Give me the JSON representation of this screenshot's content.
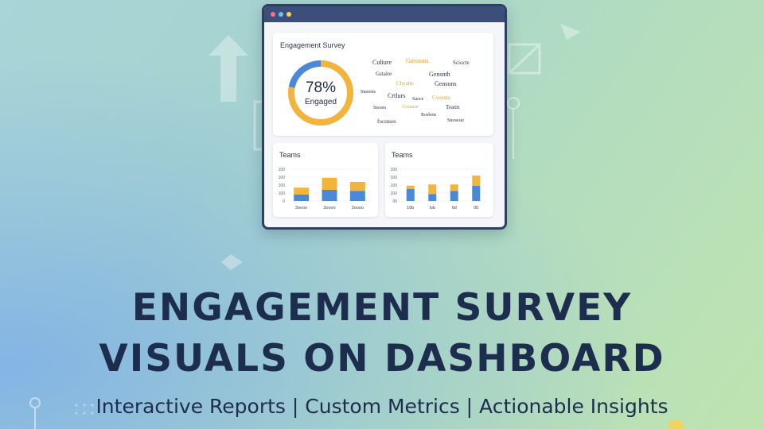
{
  "dashboard": {
    "survey_title": "Engagement Survey",
    "gauge": {
      "percent": 78,
      "percent_label": "78%",
      "caption": "Engaged"
    },
    "word_cloud": [
      {
        "text": "Culiure",
        "color": "#2a3550"
      },
      {
        "text": "Gmsions",
        "color": "#e0a526"
      },
      {
        "text": "Sciocte",
        "color": "#2a3550"
      },
      {
        "text": "Gstaire",
        "color": "#2a3550"
      },
      {
        "text": "Gensnth",
        "color": "#2a3550"
      },
      {
        "text": "Chyatte",
        "color": "#e0a526"
      },
      {
        "text": "Gensons",
        "color": "#2a3550"
      },
      {
        "text": "Snerens",
        "color": "#2a3550"
      },
      {
        "text": "Crtlurs",
        "color": "#2a3550"
      },
      {
        "text": "Saoce",
        "color": "#2a3550"
      },
      {
        "text": "Cveente",
        "color": "#e0a526"
      },
      {
        "text": "Stsoen",
        "color": "#2a3550"
      },
      {
        "text": "Coiance",
        "color": "#e0a526"
      },
      {
        "text": "Teatm",
        "color": "#2a3550"
      },
      {
        "text": "focsnses",
        "color": "#2a3550"
      },
      {
        "text": "Rosbots",
        "color": "#2a3550"
      },
      {
        "text": "Snosesie",
        "color": "#2a3550"
      }
    ],
    "left_chart": {
      "title": "Teams",
      "y_ticks": [
        "100",
        "100",
        "100",
        "100",
        "0"
      ],
      "categories": [
        "3oooo",
        "3oooo",
        "3oooo"
      ]
    },
    "right_chart": {
      "title": "Teams",
      "y_ticks": [
        "100",
        "100",
        "100",
        "100",
        "00"
      ],
      "categories": [
        "10b",
        "lob",
        "6d",
        "00"
      ]
    }
  },
  "chart_data": [
    {
      "type": "bar",
      "title": "Teams",
      "categories": [
        "3oooo",
        "3oooo",
        "3oooo"
      ],
      "series": [
        {
          "values": [
            20,
            35,
            32
          ],
          "color": "#4a88d8"
        },
        {
          "values": [
            22,
            38,
            28
          ],
          "color": "#f2b43a"
        }
      ],
      "ylim": [
        0,
        100
      ]
    },
    {
      "type": "bar",
      "title": "Teams",
      "categories": [
        "10b",
        "lob",
        "6d",
        "00"
      ],
      "series": [
        {
          "values": [
            38,
            22,
            32,
            48
          ],
          "color": "#4a88d8"
        },
        {
          "values": [
            10,
            30,
            20,
            32
          ],
          "color": "#f2b43a"
        }
      ],
      "ylim": [
        0,
        100
      ]
    }
  ],
  "headline": {
    "line1": "ENGAGEMENT SURVEY",
    "line2": "VISUALS ON DASHBOARD"
  },
  "subtitle": "Interactive Reports | Custom Metrics | Actionable Insights",
  "colors": {
    "navy": "#1d2d4d",
    "blue": "#4a88d8",
    "gold": "#f2b43a",
    "titlebar": "#3b4f7a"
  }
}
